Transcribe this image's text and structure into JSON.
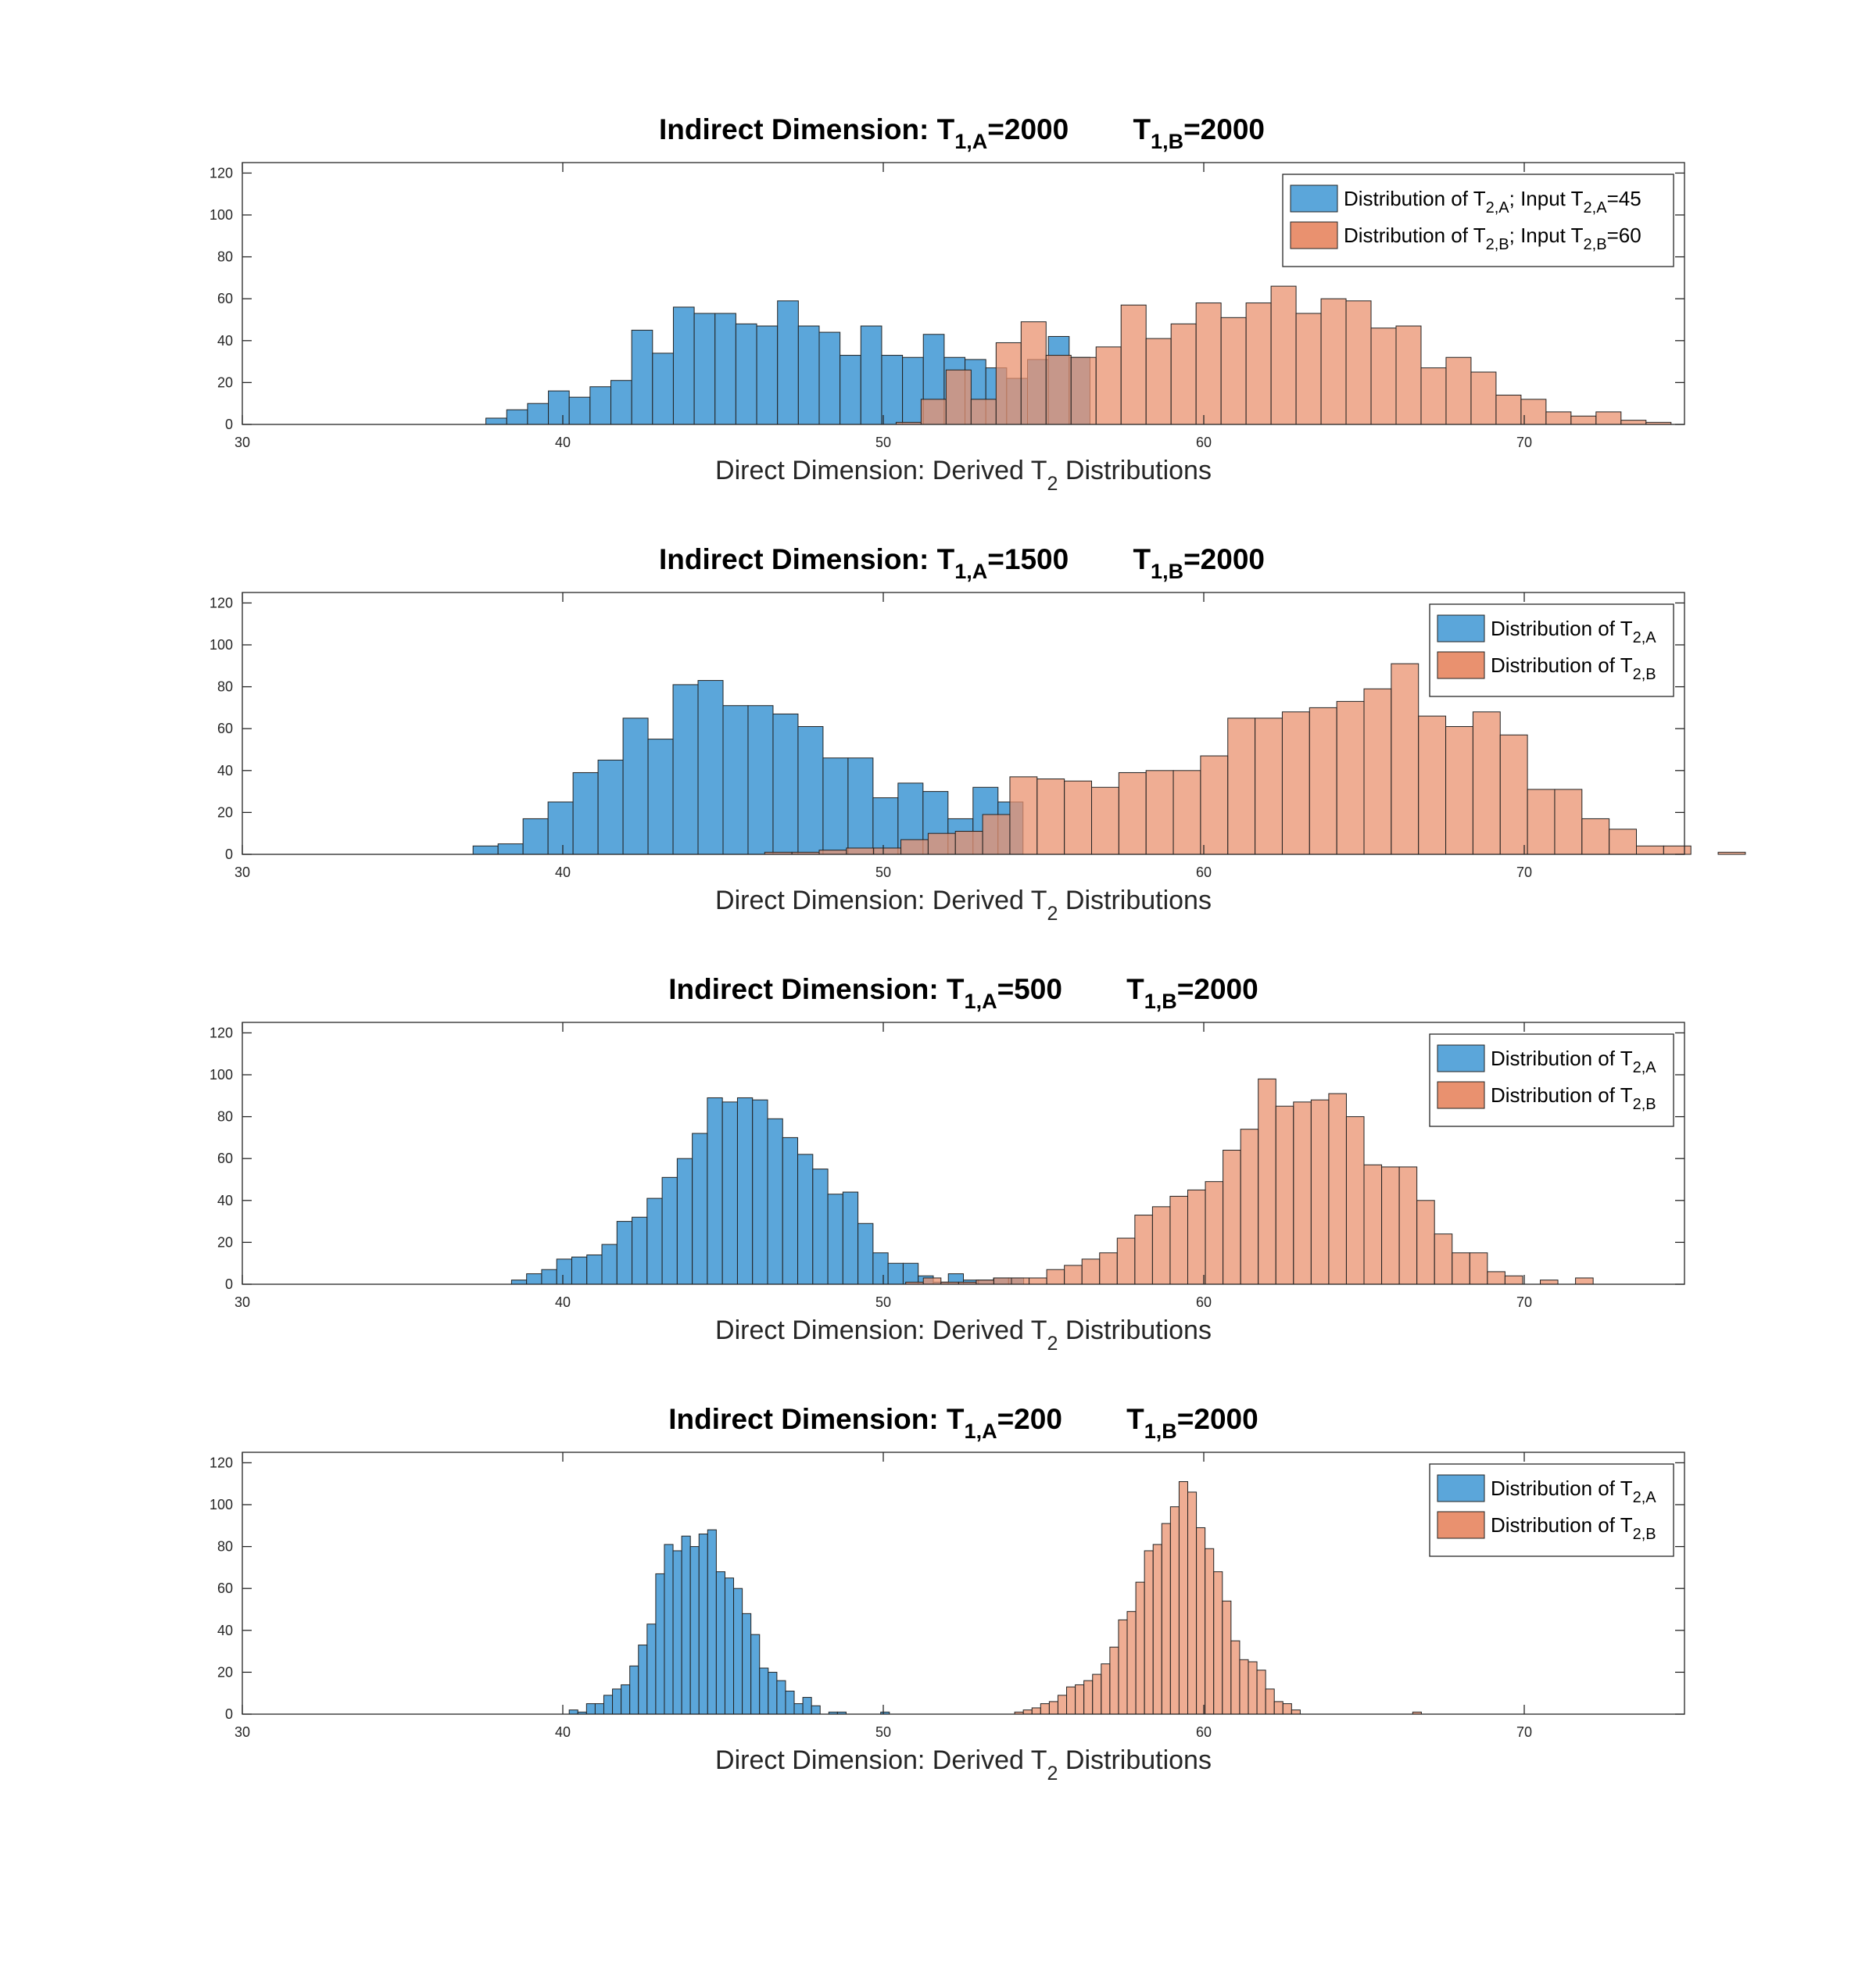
{
  "chart_data": [
    {
      "type": "bar",
      "title": {
        "lead": "Indirect Dimension:  T",
        "sub_a": "1,A",
        "val_a": "=2000",
        "lead_b": "T",
        "sub_b": "1,B",
        "val_b": "=2000"
      },
      "xlabel": {
        "main": "Direct Dimension: Derived T",
        "sub": "2",
        "tail": " Distributions"
      },
      "xlim": [
        30,
        75
      ],
      "ylim": [
        0,
        125
      ],
      "xticks": [
        "30",
        "40",
        "50",
        "60",
        "70"
      ],
      "yticks": [
        "0",
        "20",
        "40",
        "60",
        "80",
        "100",
        "120"
      ],
      "legend_position": "top-right",
      "series": [
        {
          "name": "Distribution of T2,A; Input T2,A=45",
          "color": "#0072BD",
          "label": {
            "a": "Distribution of T",
            "b": "2,A",
            "c": "; Input T",
            "d": "2,A",
            "e": "=45"
          },
          "bin_start": 37.6,
          "bin_width": 0.65,
          "counts": [
            3,
            7,
            10,
            16,
            13,
            18,
            21,
            45,
            34,
            56,
            53,
            53,
            48,
            47,
            59,
            47,
            44,
            33,
            47,
            33,
            32,
            43,
            32,
            31,
            27,
            22,
            31,
            42,
            32
          ]
        },
        {
          "name": "Distribution of T2,B; Input T2,B=60",
          "color": "#D95319",
          "label": {
            "a": "Distribution of T",
            "b": "2,B",
            "c": "; Input T",
            "d": "2,B",
            "e": "=60"
          },
          "bin_start": 50.4,
          "bin_width": 0.78,
          "counts": [
            1,
            12,
            26,
            12,
            39,
            49,
            33,
            32,
            37,
            57,
            41,
            48,
            58,
            51,
            58,
            66,
            53,
            60,
            59,
            46,
            47,
            27,
            32,
            25,
            14,
            12,
            6,
            4,
            6,
            2,
            1
          ]
        }
      ]
    },
    {
      "type": "bar",
      "title": {
        "lead": "Indirect Dimension:  T",
        "sub_a": "1,A",
        "val_a": "=1500",
        "lead_b": "T",
        "sub_b": "1,B",
        "val_b": "=2000"
      },
      "xlabel": {
        "main": "Direct Dimension: Derived T",
        "sub": "2",
        "tail": " Distributions"
      },
      "xlim": [
        30,
        75
      ],
      "ylim": [
        0,
        125
      ],
      "xticks": [
        "30",
        "40",
        "50",
        "60",
        "70"
      ],
      "yticks": [
        "0",
        "20",
        "40",
        "60",
        "80",
        "100",
        "120"
      ],
      "legend_position": "top-right",
      "series": [
        {
          "name": "Distribution of T2,A",
          "color": "#0072BD",
          "label": {
            "a": "Distribution of T",
            "b": "2,A",
            "c": "",
            "d": "",
            "e": ""
          },
          "bin_start": 37.2,
          "bin_width": 0.78,
          "counts": [
            4,
            5,
            17,
            25,
            39,
            45,
            65,
            55,
            81,
            83,
            71,
            71,
            67,
            61,
            46,
            46,
            27,
            34,
            30,
            17,
            32,
            25
          ]
        },
        {
          "name": "Distribution of T2,B",
          "color": "#D95319",
          "label": {
            "a": "Distribution of T",
            "b": "2,B",
            "c": "",
            "d": "",
            "e": ""
          },
          "bin_start": 46.3,
          "bin_width": 0.85,
          "counts": [
            1,
            1,
            2,
            3,
            3,
            7,
            10,
            11,
            19,
            37,
            36,
            35,
            32,
            39,
            40,
            40,
            47,
            65,
            65,
            68,
            70,
            73,
            79,
            91,
            66,
            61,
            68,
            57,
            31,
            31,
            17,
            12,
            4,
            4,
            0,
            1
          ]
        }
      ]
    },
    {
      "type": "bar",
      "title": {
        "lead": "Indirect Dimension:  T",
        "sub_a": "1,A",
        "val_a": "=500",
        "lead_b": "T",
        "sub_b": "1,B",
        "val_b": "=2000"
      },
      "xlabel": {
        "main": "Direct Dimension: Derived T",
        "sub": "2",
        "tail": " Distributions"
      },
      "xlim": [
        30,
        75
      ],
      "ylim": [
        0,
        125
      ],
      "xticks": [
        "30",
        "40",
        "50",
        "60",
        "70"
      ],
      "yticks": [
        "0",
        "20",
        "40",
        "60",
        "80",
        "100",
        "120"
      ],
      "legend_position": "top-right",
      "series": [
        {
          "name": "Distribution of T2,A",
          "color": "#0072BD",
          "label": {
            "a": "Distribution of T",
            "b": "2,A",
            "c": "",
            "d": "",
            "e": ""
          },
          "bin_start": 38.4,
          "bin_width": 0.47,
          "counts": [
            2,
            5,
            7,
            12,
            13,
            14,
            19,
            30,
            32,
            41,
            51,
            60,
            72,
            89,
            87,
            89,
            88,
            79,
            70,
            62,
            55,
            43,
            44,
            29,
            15,
            10,
            10,
            4,
            1,
            5,
            2,
            2,
            3,
            3
          ]
        },
        {
          "name": "Distribution of T2,B",
          "color": "#D95319",
          "label": {
            "a": "Distribution of T",
            "b": "2,B",
            "c": "",
            "d": "",
            "e": ""
          },
          "bin_start": 50.7,
          "bin_width": 0.55,
          "counts": [
            1,
            3,
            1,
            1,
            2,
            3,
            3,
            3,
            7,
            9,
            12,
            15,
            22,
            33,
            37,
            42,
            45,
            49,
            64,
            74,
            98,
            85,
            87,
            88,
            91,
            80,
            57,
            56,
            56,
            40,
            24,
            15,
            15,
            6,
            4,
            0,
            2,
            0,
            3
          ]
        }
      ]
    },
    {
      "type": "bar",
      "title": {
        "lead": "Indirect Dimension:  T",
        "sub_a": "1,A",
        "val_a": "=200",
        "lead_b": "T",
        "sub_b": "1,B",
        "val_b": "=2000"
      },
      "xlabel": {
        "main": "Direct Dimension: Derived T",
        "sub": "2",
        "tail": " Distributions"
      },
      "xlim": [
        30,
        75
      ],
      "ylim": [
        0,
        125
      ],
      "xticks": [
        "30",
        "40",
        "50",
        "60",
        "70"
      ],
      "yticks": [
        "0",
        "20",
        "40",
        "60",
        "80",
        "100",
        "120"
      ],
      "legend_position": "top-right",
      "series": [
        {
          "name": "Distribution of T2,A",
          "color": "#0072BD",
          "label": {
            "a": "Distribution of T",
            "b": "2,A",
            "c": "",
            "d": "",
            "e": ""
          },
          "bin_start": 40.2,
          "bin_width": 0.27,
          "counts": [
            2,
            1,
            5,
            5,
            9,
            12,
            14,
            23,
            33,
            43,
            67,
            81,
            78,
            85,
            80,
            86,
            88,
            68,
            65,
            60,
            48,
            38,
            22,
            20,
            16,
            11,
            5,
            8,
            4,
            0,
            1,
            1,
            0,
            0,
            0,
            0,
            1
          ]
        },
        {
          "name": "Distribution of T2,B",
          "color": "#D95319",
          "label": {
            "a": "Distribution of T",
            "b": "2,B",
            "c": "",
            "d": "",
            "e": ""
          },
          "bin_start": 54.1,
          "bin_width": 0.27,
          "counts": [
            1,
            2,
            3,
            5,
            6,
            9,
            13,
            14,
            16,
            19,
            24,
            32,
            45,
            49,
            63,
            78,
            81,
            91,
            99,
            111,
            106,
            89,
            79,
            68,
            54,
            35,
            26,
            25,
            21,
            12,
            6,
            5,
            2,
            0,
            0,
            0,
            0,
            0,
            0,
            0,
            0,
            0,
            0,
            0,
            0,
            0,
            1
          ]
        }
      ]
    }
  ]
}
